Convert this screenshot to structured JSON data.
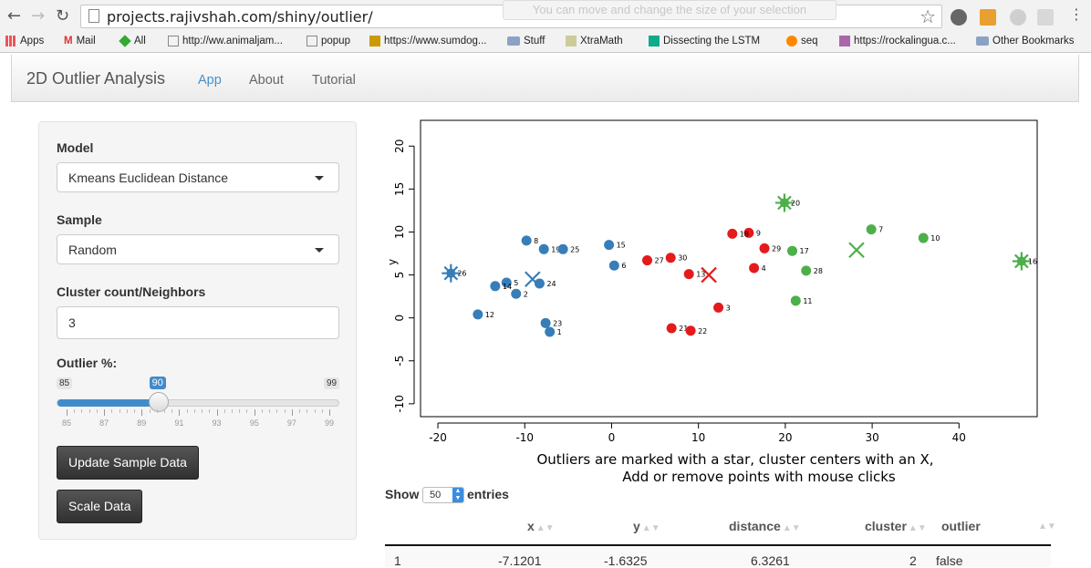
{
  "browser": {
    "url": "projects.rajivshah.com/shiny/outlier/",
    "tooltip": "You can move and change the size of your selection",
    "bookmarks": [
      {
        "label": "Apps",
        "icon": "apps-grid-icon"
      },
      {
        "label": "Mail",
        "icon": "gmail-icon"
      },
      {
        "label": "All",
        "icon": "diamond-icon"
      },
      {
        "label": "http://ww.animaljam...",
        "icon": "page-icon"
      },
      {
        "label": "popup",
        "icon": "page-icon"
      },
      {
        "label": "https://www.sumdog...",
        "icon": "sumdog-icon"
      },
      {
        "label": "Stuff",
        "icon": "folder-icon"
      },
      {
        "label": "XtraMath",
        "icon": "xtramath-icon"
      },
      {
        "label": "Dissecting the LSTM",
        "icon": "medium-icon"
      },
      {
        "label": "seq",
        "icon": "seq-icon"
      },
      {
        "label": "https://rockalingua.c...",
        "icon": "rockalingua-icon"
      },
      {
        "label": "Other Bookmarks",
        "icon": "folder-icon"
      }
    ]
  },
  "navbar": {
    "brand": "2D Outlier Analysis",
    "tabs": [
      "App",
      "About",
      "Tutorial"
    ],
    "active_tab": "App"
  },
  "sidebar": {
    "model_label": "Model",
    "model_value": "Kmeans Euclidean Distance",
    "sample_label": "Sample",
    "sample_value": "Random",
    "cluster_label": "Cluster count/Neighbors",
    "cluster_value": "3",
    "outlier_label": "Outlier %:",
    "outlier_min": "85",
    "outlier_max": "99",
    "outlier_value": "90",
    "outlier_fraction": 0.357,
    "tick_labels": [
      "85",
      "87",
      "89",
      "91",
      "93",
      "95",
      "97",
      "99"
    ],
    "update_button": "Update Sample Data",
    "scale_button": "Scale Data"
  },
  "chart_data": {
    "type": "scatter",
    "xlabel": "",
    "ylabel": "y",
    "xlim": [
      -22,
      49
    ],
    "ylim": [
      -11.5,
      23
    ],
    "x_ticks": [
      -20,
      -10,
      0,
      10,
      20,
      30,
      40
    ],
    "y_ticks": [
      -10,
      -5,
      0,
      5,
      10,
      15,
      20
    ],
    "colors": {
      "1": "#377eb8",
      "2": "#e41a1c",
      "3": "#4daf4a"
    },
    "caption_line1": "Outliers are marked with a star, cluster centers with an X,",
    "caption_line2": "Add or remove points with mouse clicks",
    "points": [
      {
        "id": "1",
        "x": -7.12,
        "y": -1.63,
        "c": 1
      },
      {
        "id": "2",
        "x": -11.0,
        "y": 2.8,
        "c": 1
      },
      {
        "id": "3",
        "x": 12.3,
        "y": 1.2,
        "c": 2
      },
      {
        "id": "4",
        "x": 16.4,
        "y": 5.8,
        "c": 2
      },
      {
        "id": "5",
        "x": -12.1,
        "y": 4.1,
        "c": 1
      },
      {
        "id": "6",
        "x": 0.3,
        "y": 6.1,
        "c": 1
      },
      {
        "id": "7",
        "x": 29.9,
        "y": 10.3,
        "c": 3
      },
      {
        "id": "8",
        "x": -9.8,
        "y": 9.0,
        "c": 1
      },
      {
        "id": "9",
        "x": 15.8,
        "y": 9.9,
        "c": 2
      },
      {
        "id": "10",
        "x": 35.9,
        "y": 9.3,
        "c": 3
      },
      {
        "id": "11",
        "x": 21.2,
        "y": 2.0,
        "c": 3
      },
      {
        "id": "12",
        "x": -15.4,
        "y": 0.4,
        "c": 1
      },
      {
        "id": "13",
        "x": 8.9,
        "y": 5.1,
        "c": 2
      },
      {
        "id": "14",
        "x": -13.4,
        "y": 3.7,
        "c": 1
      },
      {
        "id": "15",
        "x": -0.3,
        "y": 8.5,
        "c": 1
      },
      {
        "id": "16",
        "x": 47.2,
        "y": 6.6,
        "c": 3,
        "outlier": true
      },
      {
        "id": "17",
        "x": 20.8,
        "y": 7.8,
        "c": 3
      },
      {
        "id": "18",
        "x": 13.9,
        "y": 9.8,
        "c": 2
      },
      {
        "id": "19",
        "x": -7.8,
        "y": 8.0,
        "c": 1
      },
      {
        "id": "20",
        "x": 19.9,
        "y": 13.4,
        "c": 3,
        "outlier": true
      },
      {
        "id": "21",
        "x": 6.9,
        "y": -1.2,
        "c": 2
      },
      {
        "id": "22",
        "x": 9.1,
        "y": -1.5,
        "c": 2
      },
      {
        "id": "23",
        "x": -7.6,
        "y": -0.6,
        "c": 1
      },
      {
        "id": "24",
        "x": -8.3,
        "y": 4.0,
        "c": 1
      },
      {
        "id": "25",
        "x": -5.6,
        "y": 8.0,
        "c": 1
      },
      {
        "id": "26",
        "x": -18.5,
        "y": 5.2,
        "c": 1,
        "outlier": true
      },
      {
        "id": "27",
        "x": 4.1,
        "y": 6.7,
        "c": 2
      },
      {
        "id": "28",
        "x": 22.4,
        "y": 5.5,
        "c": 3
      },
      {
        "id": "29",
        "x": 17.6,
        "y": 8.1,
        "c": 2
      },
      {
        "id": "30",
        "x": 6.8,
        "y": 7.0,
        "c": 2
      }
    ],
    "centers": [
      {
        "x": -9.1,
        "y": 4.5,
        "c": 1
      },
      {
        "x": 11.2,
        "y": 5.0,
        "c": 2
      },
      {
        "x": 28.2,
        "y": 7.9,
        "c": 3
      }
    ]
  },
  "table": {
    "show_label": "Show",
    "length_value": "50",
    "entries_label": "entries",
    "columns": [
      "",
      "x",
      "y",
      "distance",
      "cluster",
      "outlier"
    ],
    "rows": [
      [
        "1",
        "-7.1201",
        "-1.6325",
        "6.3261",
        "2",
        "false"
      ]
    ]
  }
}
